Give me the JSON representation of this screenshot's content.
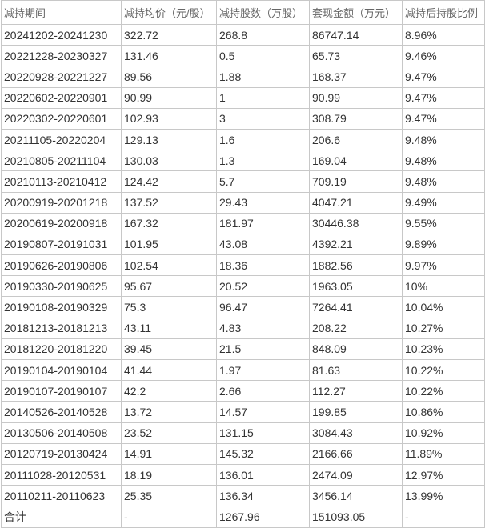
{
  "table": {
    "header": [
      "减持期间",
      "减持均价（元/股）",
      "减持股数（万股）",
      "套现金额（万元）",
      "减持后持股比例"
    ],
    "rows": [
      [
        "20241202-20241230",
        "322.72",
        "268.8",
        "86747.14",
        "8.96%"
      ],
      [
        "20221228-20230327",
        "131.46",
        "0.5",
        "65.73",
        "9.46%"
      ],
      [
        "20220928-20221227",
        "89.56",
        "1.88",
        "168.37",
        "9.47%"
      ],
      [
        "20220602-20220901",
        "90.99",
        "1",
        "90.99",
        "9.47%"
      ],
      [
        "20220302-20220601",
        "102.93",
        "3",
        "308.79",
        "9.47%"
      ],
      [
        "20211105-20220204",
        "129.13",
        "1.6",
        "206.6",
        "9.48%"
      ],
      [
        "20210805-20211104",
        "130.03",
        "1.3",
        "169.04",
        "9.48%"
      ],
      [
        "20210113-20210412",
        "124.42",
        "5.7",
        "709.19",
        "9.48%"
      ],
      [
        "20200919-20201218",
        "137.52",
        "29.43",
        "4047.21",
        "9.49%"
      ],
      [
        "20200619-20200918",
        "167.32",
        "181.97",
        "30446.38",
        "9.55%"
      ],
      [
        "20190807-20191031",
        "101.95",
        "43.08",
        "4392.21",
        "9.89%"
      ],
      [
        "20190626-20190806",
        "102.54",
        "18.36",
        "1882.56",
        "9.97%"
      ],
      [
        "20190330-20190625",
        "95.67",
        "20.52",
        "1963.05",
        "10%"
      ],
      [
        "20190108-20190329",
        "75.3",
        "96.47",
        "7264.41",
        "10.04%"
      ],
      [
        "20181213-20181213",
        "43.11",
        "4.83",
        "208.22",
        "10.27%"
      ],
      [
        "20181220-20181220",
        "39.45",
        "21.5",
        "848.09",
        "10.23%"
      ],
      [
        "20190104-20190104",
        "41.44",
        "1.97",
        "81.63",
        "10.22%"
      ],
      [
        "20190107-20190107",
        "42.2",
        "2.66",
        "112.27",
        "10.22%"
      ],
      [
        "20140526-20140528",
        "13.72",
        "14.57",
        "199.85",
        "10.86%"
      ],
      [
        "20130506-20140508",
        "23.52",
        "131.15",
        "3084.43",
        "10.92%"
      ],
      [
        "20120719-20130424",
        "14.91",
        "145.32",
        "2166.66",
        "11.89%"
      ],
      [
        "20111028-20120531",
        "18.19",
        "136.01",
        "2474.09",
        "12.97%"
      ],
      [
        "20110211-20110623",
        "25.35",
        "136.34",
        "3456.14",
        "13.99%"
      ],
      [
        "合计",
        "-",
        "1267.96",
        "151093.05",
        "-"
      ]
    ]
  }
}
